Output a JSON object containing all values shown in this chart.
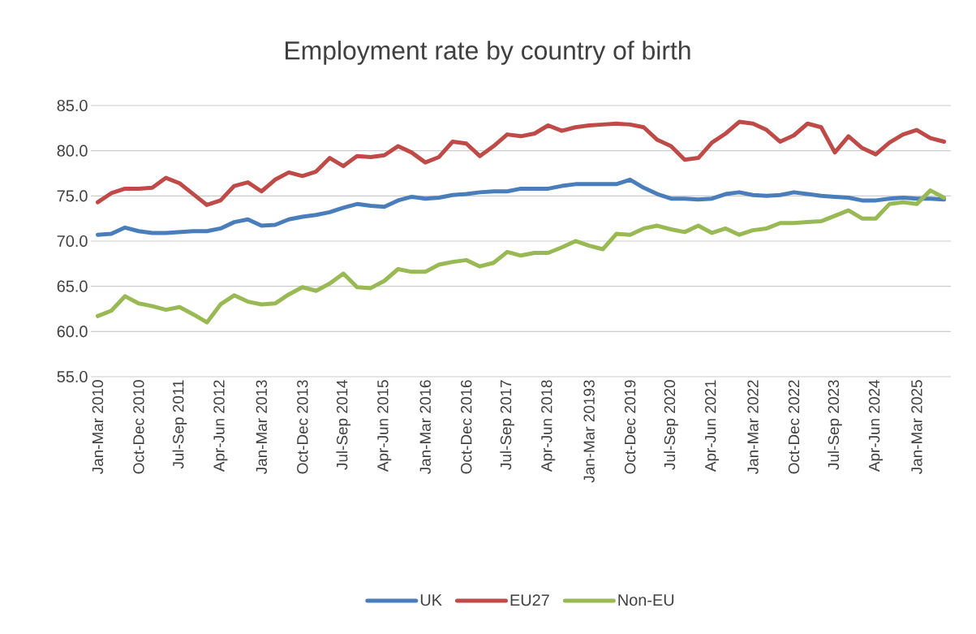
{
  "chart_data": {
    "type": "line",
    "title": "Employment rate by country of birth",
    "categories": [
      "Jan-Mar 2010",
      null,
      null,
      "Oct-Dec 2010",
      null,
      null,
      "Jul-Sep 2011",
      null,
      null,
      "Apr-Jun 2012",
      null,
      null,
      "Jan-Mar 2013",
      null,
      null,
      "Oct-Dec 2013",
      null,
      null,
      "Jul-Sep 2014",
      null,
      null,
      "Apr-Jun 2015",
      null,
      null,
      "Jan-Mar 2016",
      null,
      null,
      "Oct-Dec 2016",
      null,
      null,
      "Jul-Sep 2017",
      null,
      null,
      "Apr-Jun 2018",
      null,
      null,
      "Jan-Mar 20193",
      null,
      null,
      "Oct-Dec 2019",
      null,
      null,
      "Jul-Sep 2020",
      null,
      null,
      "Apr-Jun 2021",
      null,
      null,
      "Jan-Mar 2022",
      null,
      null,
      "Oct-Dec 2022",
      null,
      null,
      "Jul-Sep 2023",
      null,
      null,
      "Apr-Jun 2024",
      null,
      null,
      "Jan-Mar 2025",
      null,
      null
    ],
    "series": [
      {
        "name": "UK",
        "color": "#4a7ebb",
        "values": [
          70.7,
          70.8,
          71.5,
          71.1,
          70.9,
          70.9,
          71.0,
          71.1,
          71.1,
          71.4,
          72.1,
          72.4,
          71.7,
          71.8,
          72.4,
          72.7,
          72.9,
          73.2,
          73.7,
          74.1,
          73.9,
          73.8,
          74.5,
          74.9,
          74.7,
          74.8,
          75.1,
          75.2,
          75.4,
          75.5,
          75.5,
          75.8,
          75.8,
          75.8,
          76.1,
          76.3,
          76.3,
          76.3,
          76.3,
          76.8,
          75.9,
          75.2,
          74.7,
          74.7,
          74.6,
          74.7,
          75.2,
          75.4,
          75.1,
          75.0,
          75.1,
          75.4,
          75.2,
          75.0,
          74.9,
          74.8,
          74.5,
          74.5,
          74.7,
          74.8,
          74.7,
          74.7,
          74.6
        ]
      },
      {
        "name": "EU27",
        "color": "#be4b48",
        "values": [
          74.3,
          75.3,
          75.8,
          75.8,
          75.9,
          77.0,
          76.4,
          75.2,
          74.0,
          74.5,
          76.1,
          76.5,
          75.5,
          76.8,
          77.6,
          77.2,
          77.7,
          79.2,
          78.3,
          79.4,
          79.3,
          79.5,
          80.5,
          79.8,
          78.7,
          79.3,
          81.0,
          80.8,
          79.4,
          80.5,
          81.8,
          81.6,
          81.9,
          82.8,
          82.2,
          82.6,
          82.8,
          82.9,
          83.0,
          82.9,
          82.6,
          81.2,
          80.5,
          79.0,
          79.2,
          80.9,
          81.9,
          83.2,
          83.0,
          82.3,
          81.0,
          81.7,
          83.0,
          82.6,
          79.8,
          81.6,
          80.3,
          79.6,
          80.9,
          81.8,
          82.3,
          81.4,
          81.0
        ]
      },
      {
        "name": "Non-EU",
        "color": "#98b954",
        "values": [
          61.7,
          62.3,
          63.9,
          63.1,
          62.8,
          62.4,
          62.7,
          61.9,
          61.0,
          63.0,
          64.0,
          63.3,
          63.0,
          63.1,
          64.1,
          64.9,
          64.5,
          65.3,
          66.4,
          64.9,
          64.8,
          65.6,
          66.9,
          66.6,
          66.6,
          67.4,
          67.7,
          67.9,
          67.2,
          67.6,
          68.8,
          68.4,
          68.7,
          68.7,
          69.3,
          70.0,
          69.5,
          69.1,
          70.8,
          70.7,
          71.4,
          71.7,
          71.3,
          71.0,
          71.7,
          70.9,
          71.4,
          70.7,
          71.2,
          71.4,
          72.0,
          72.0,
          72.1,
          72.2,
          72.8,
          73.4,
          72.5,
          72.5,
          74.1,
          74.3,
          74.1,
          75.6,
          74.8
        ]
      }
    ],
    "ylim": [
      55,
      85
    ],
    "yticks": [
      {
        "value": 55,
        "label": "55.0"
      },
      {
        "value": 60,
        "label": "60.0"
      },
      {
        "value": 65,
        "label": "65.0"
      },
      {
        "value": 70,
        "label": "70.0"
      },
      {
        "value": 75,
        "label": "75.0"
      },
      {
        "value": 80,
        "label": "80.0"
      },
      {
        "value": 85,
        "label": "85.0"
      }
    ],
    "grid": "y",
    "legend": "bottom",
    "marker": "none",
    "line_style": "solid"
  }
}
